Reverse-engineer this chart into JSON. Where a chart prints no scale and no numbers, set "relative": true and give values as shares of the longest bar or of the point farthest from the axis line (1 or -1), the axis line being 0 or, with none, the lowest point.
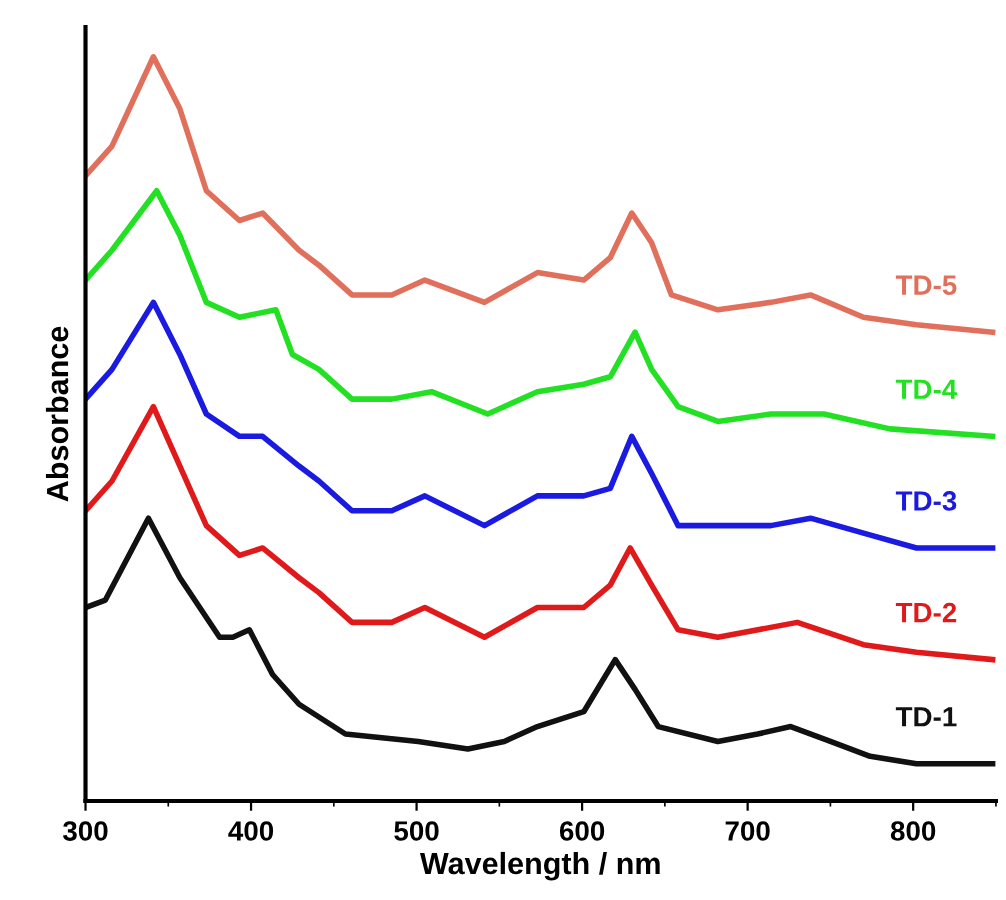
{
  "chart_data": {
    "type": "line",
    "relative": true,
    "xlabel": "Wavelength / nm",
    "ylabel": "Absorbance",
    "xlim": [
      300,
      850
    ],
    "xticks": [
      300,
      400,
      500,
      600,
      700,
      800
    ],
    "grid": false,
    "legend": false,
    "marker": "none",
    "line_style": "solid",
    "tick_labels": "x",
    "series": [
      {
        "name": "TD-5",
        "color": "#e0705c",
        "x": [
          300,
          316,
          341,
          357,
          373,
          393,
          407,
          429,
          441,
          461,
          485,
          505,
          541,
          573,
          601,
          617,
          630,
          642,
          654,
          682,
          714,
          738,
          770,
          802,
          848
        ],
        "values": [
          0.84,
          0.88,
          1.0,
          0.93,
          0.82,
          0.78,
          0.79,
          0.74,
          0.72,
          0.68,
          0.68,
          0.7,
          0.67,
          0.71,
          0.7,
          0.73,
          0.79,
          0.75,
          0.68,
          0.66,
          0.67,
          0.68,
          0.65,
          0.64,
          0.63
        ]
      },
      {
        "name": "TD-4",
        "color": "#22e022",
        "x": [
          300,
          316,
          343,
          357,
          373,
          393,
          415,
          425,
          441,
          461,
          485,
          509,
          543,
          573,
          601,
          617,
          632,
          642,
          658,
          682,
          714,
          746,
          786,
          848
        ],
        "values": [
          0.7,
          0.74,
          0.82,
          0.76,
          0.67,
          0.65,
          0.66,
          0.6,
          0.58,
          0.54,
          0.54,
          0.55,
          0.52,
          0.55,
          0.56,
          0.57,
          0.63,
          0.58,
          0.53,
          0.51,
          0.52,
          0.52,
          0.5,
          0.49
        ]
      },
      {
        "name": "TD-3",
        "color": "#1a1ae0",
        "x": [
          300,
          316,
          341,
          357,
          373,
          393,
          407,
          429,
          441,
          461,
          485,
          505,
          541,
          573,
          601,
          617,
          630,
          642,
          658,
          682,
          714,
          738,
          770,
          802,
          848
        ],
        "values": [
          0.54,
          0.58,
          0.67,
          0.6,
          0.52,
          0.49,
          0.49,
          0.45,
          0.43,
          0.39,
          0.39,
          0.41,
          0.37,
          0.41,
          0.41,
          0.42,
          0.49,
          0.44,
          0.37,
          0.37,
          0.37,
          0.38,
          0.36,
          0.34,
          0.34
        ]
      },
      {
        "name": "TD-2",
        "color": "#e01a1a",
        "x": [
          300,
          316,
          341,
          357,
          373,
          393,
          407,
          429,
          441,
          461,
          485,
          505,
          541,
          573,
          601,
          617,
          629,
          642,
          658,
          682,
          730,
          770,
          802,
          848
        ],
        "values": [
          0.39,
          0.43,
          0.53,
          0.45,
          0.37,
          0.33,
          0.34,
          0.3,
          0.28,
          0.24,
          0.24,
          0.26,
          0.22,
          0.26,
          0.26,
          0.29,
          0.34,
          0.29,
          0.23,
          0.22,
          0.24,
          0.21,
          0.2,
          0.19
        ]
      },
      {
        "name": "TD-1",
        "color": "#111111",
        "x": [
          300,
          312,
          338,
          357,
          381,
          389,
          399,
          413,
          429,
          457,
          501,
          531,
          553,
          573,
          601,
          620,
          632,
          646,
          682,
          706,
          726,
          750,
          774,
          802,
          848
        ],
        "values": [
          0.26,
          0.27,
          0.38,
          0.3,
          0.22,
          0.22,
          0.23,
          0.17,
          0.13,
          0.09,
          0.08,
          0.07,
          0.08,
          0.1,
          0.12,
          0.19,
          0.15,
          0.1,
          0.08,
          0.09,
          0.1,
          0.08,
          0.06,
          0.05,
          0.05
        ]
      }
    ]
  }
}
